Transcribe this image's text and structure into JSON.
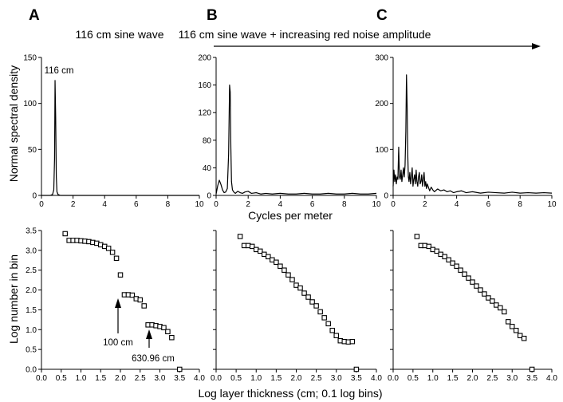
{
  "panel_letters": [
    "A",
    "B",
    "C"
  ],
  "headers": {
    "a": "116 cm sine wave",
    "bc": "116 cm sine wave + increasing red noise amplitude"
  },
  "axis_labels": {
    "spectral_y": "Normal spectral density",
    "spectral_x": "Cycles per meter",
    "count_y": "Log number in bin",
    "count_x": "Log layer thickness (cm; 0.1 log bins)"
  },
  "annotations": {
    "peak": "116 cm",
    "arrow1": "100 cm",
    "arrow2": "630.96 cm"
  },
  "chart_data": [
    {
      "id": "A-top",
      "type": "line",
      "xlim": [
        0,
        10
      ],
      "ylim": [
        0,
        150
      ],
      "xticks": [
        0,
        2,
        4,
        6,
        8,
        10
      ],
      "yticks": [
        0,
        50,
        100,
        150
      ],
      "x": [
        0,
        0.55,
        0.7,
        0.78,
        0.83,
        0.86,
        0.9,
        0.94,
        0.98,
        1.05,
        1.2,
        10
      ],
      "y": [
        0,
        0,
        1,
        6,
        40,
        125,
        85,
        20,
        4,
        1,
        0,
        0
      ]
    },
    {
      "id": "B-top",
      "type": "line",
      "xlim": [
        0,
        10
      ],
      "ylim": [
        0,
        200
      ],
      "xticks": [
        0,
        2,
        4,
        6,
        8,
        10
      ],
      "yticks": [
        0,
        40,
        80,
        120,
        160,
        200
      ],
      "x": [
        0,
        0.1,
        0.2,
        0.3,
        0.4,
        0.5,
        0.6,
        0.7,
        0.78,
        0.84,
        0.88,
        0.92,
        0.96,
        1.02,
        1.1,
        1.2,
        1.35,
        1.5,
        1.65,
        1.8,
        2.0,
        2.2,
        2.5,
        2.8,
        3.1,
        3.5,
        4.0,
        4.5,
        5.0,
        5.5,
        6.0,
        6.5,
        7.0,
        7.5,
        8.0,
        8.5,
        9.0,
        9.5,
        10.0
      ],
      "y": [
        2,
        14,
        22,
        16,
        8,
        4,
        5,
        10,
        60,
        160,
        150,
        70,
        20,
        8,
        5,
        3,
        6,
        4,
        3,
        5,
        6,
        3,
        4,
        2,
        3,
        2,
        3,
        2,
        2,
        3,
        2,
        2,
        3,
        2,
        2,
        3,
        2,
        2,
        3
      ]
    },
    {
      "id": "C-top",
      "type": "line",
      "xlim": [
        0,
        10
      ],
      "ylim": [
        0,
        300
      ],
      "xticks": [
        0,
        2,
        4,
        6,
        8,
        10
      ],
      "yticks": [
        0,
        100,
        200,
        300
      ],
      "x": [
        0,
        0.05,
        0.1,
        0.15,
        0.2,
        0.25,
        0.3,
        0.35,
        0.4,
        0.45,
        0.5,
        0.55,
        0.6,
        0.65,
        0.7,
        0.75,
        0.8,
        0.84,
        0.88,
        0.92,
        0.96,
        1.0,
        1.05,
        1.1,
        1.15,
        1.2,
        1.25,
        1.3,
        1.35,
        1.4,
        1.45,
        1.5,
        1.55,
        1.6,
        1.65,
        1.7,
        1.75,
        1.8,
        1.85,
        1.9,
        1.95,
        2.0,
        2.05,
        2.1,
        2.15,
        2.2,
        2.3,
        2.4,
        2.5,
        2.6,
        2.8,
        3.0,
        3.2,
        3.4,
        3.6,
        3.8,
        4.0,
        4.3,
        4.6,
        5.0,
        5.5,
        6.0,
        6.5,
        7.0,
        7.5,
        8.0,
        8.5,
        9.0,
        9.5,
        10.0
      ],
      "y": [
        20,
        55,
        30,
        45,
        25,
        40,
        35,
        105,
        40,
        35,
        55,
        30,
        45,
        60,
        40,
        65,
        140,
        262,
        200,
        90,
        40,
        30,
        50,
        25,
        40,
        60,
        20,
        35,
        45,
        25,
        55,
        30,
        20,
        40,
        50,
        25,
        30,
        45,
        20,
        35,
        50,
        20,
        30,
        15,
        25,
        20,
        10,
        18,
        12,
        8,
        14,
        10,
        12,
        8,
        10,
        6,
        8,
        10,
        6,
        8,
        5,
        7,
        6,
        5,
        7,
        5,
        6,
        5,
        6,
        5
      ]
    },
    {
      "id": "A-bottom",
      "type": "scatter",
      "xlim": [
        0,
        4
      ],
      "ylim": [
        0,
        3.5
      ],
      "xticks": [
        0,
        0.5,
        1.0,
        1.5,
        2.0,
        2.5,
        3.0,
        3.5,
        4.0
      ],
      "yticks": [
        0,
        0.5,
        1.0,
        1.5,
        2.0,
        2.5,
        3.0,
        3.5
      ],
      "x": [
        0.6,
        0.7,
        0.8,
        0.9,
        1.0,
        1.1,
        1.2,
        1.3,
        1.4,
        1.5,
        1.6,
        1.7,
        1.8,
        1.9,
        2.0,
        2.1,
        2.2,
        2.3,
        2.4,
        2.5,
        2.6,
        2.7,
        2.8,
        2.9,
        3.0,
        3.1,
        3.2,
        3.3,
        3.5
      ],
      "y": [
        3.42,
        3.25,
        3.25,
        3.25,
        3.24,
        3.23,
        3.22,
        3.2,
        3.18,
        3.14,
        3.1,
        3.05,
        2.95,
        2.8,
        2.38,
        1.88,
        1.88,
        1.87,
        1.78,
        1.75,
        1.6,
        1.12,
        1.12,
        1.1,
        1.08,
        1.05,
        0.95,
        0.8,
        0.0
      ]
    },
    {
      "id": "B-bottom",
      "type": "scatter",
      "xlim": [
        0,
        4
      ],
      "ylim": [
        0,
        3.5
      ],
      "xticks": [
        0,
        0.5,
        1.0,
        1.5,
        2.0,
        2.5,
        3.0,
        3.5,
        4.0
      ],
      "yticks": [
        0,
        0.5,
        1.0,
        1.5,
        2.0,
        2.5,
        3.0,
        3.5
      ],
      "x": [
        0.6,
        0.7,
        0.8,
        0.9,
        1.0,
        1.1,
        1.2,
        1.3,
        1.4,
        1.5,
        1.6,
        1.7,
        1.8,
        1.9,
        2.0,
        2.1,
        2.2,
        2.3,
        2.4,
        2.5,
        2.6,
        2.7,
        2.8,
        2.9,
        3.0,
        3.1,
        3.2,
        3.3,
        3.4,
        3.5
      ],
      "y": [
        3.35,
        3.12,
        3.12,
        3.1,
        3.02,
        2.98,
        2.9,
        2.84,
        2.76,
        2.7,
        2.6,
        2.5,
        2.38,
        2.26,
        2.12,
        2.05,
        1.92,
        1.82,
        1.7,
        1.6,
        1.45,
        1.3,
        1.15,
        0.98,
        0.85,
        0.72,
        0.7,
        0.69,
        0.7,
        0.0
      ]
    },
    {
      "id": "C-bottom",
      "type": "scatter",
      "xlim": [
        0,
        4
      ],
      "ylim": [
        0,
        3.5
      ],
      "xticks": [
        0,
        0.5,
        1.0,
        1.5,
        2.0,
        2.5,
        3.0,
        3.5,
        4.0
      ],
      "yticks": [
        0,
        0.5,
        1.0,
        1.5,
        2.0,
        2.5,
        3.0,
        3.5
      ],
      "x": [
        0.6,
        0.7,
        0.8,
        0.9,
        1.0,
        1.1,
        1.2,
        1.3,
        1.4,
        1.5,
        1.6,
        1.7,
        1.8,
        1.9,
        2.0,
        2.1,
        2.2,
        2.3,
        2.4,
        2.5,
        2.6,
        2.7,
        2.8,
        2.9,
        3.0,
        3.1,
        3.2,
        3.3,
        3.5
      ],
      "y": [
        3.35,
        3.12,
        3.12,
        3.1,
        3.02,
        2.98,
        2.9,
        2.84,
        2.76,
        2.68,
        2.6,
        2.5,
        2.4,
        2.3,
        2.2,
        2.1,
        2.0,
        1.9,
        1.8,
        1.72,
        1.62,
        1.55,
        1.45,
        1.2,
        1.08,
        0.98,
        0.85,
        0.78,
        0.0
      ]
    }
  ]
}
